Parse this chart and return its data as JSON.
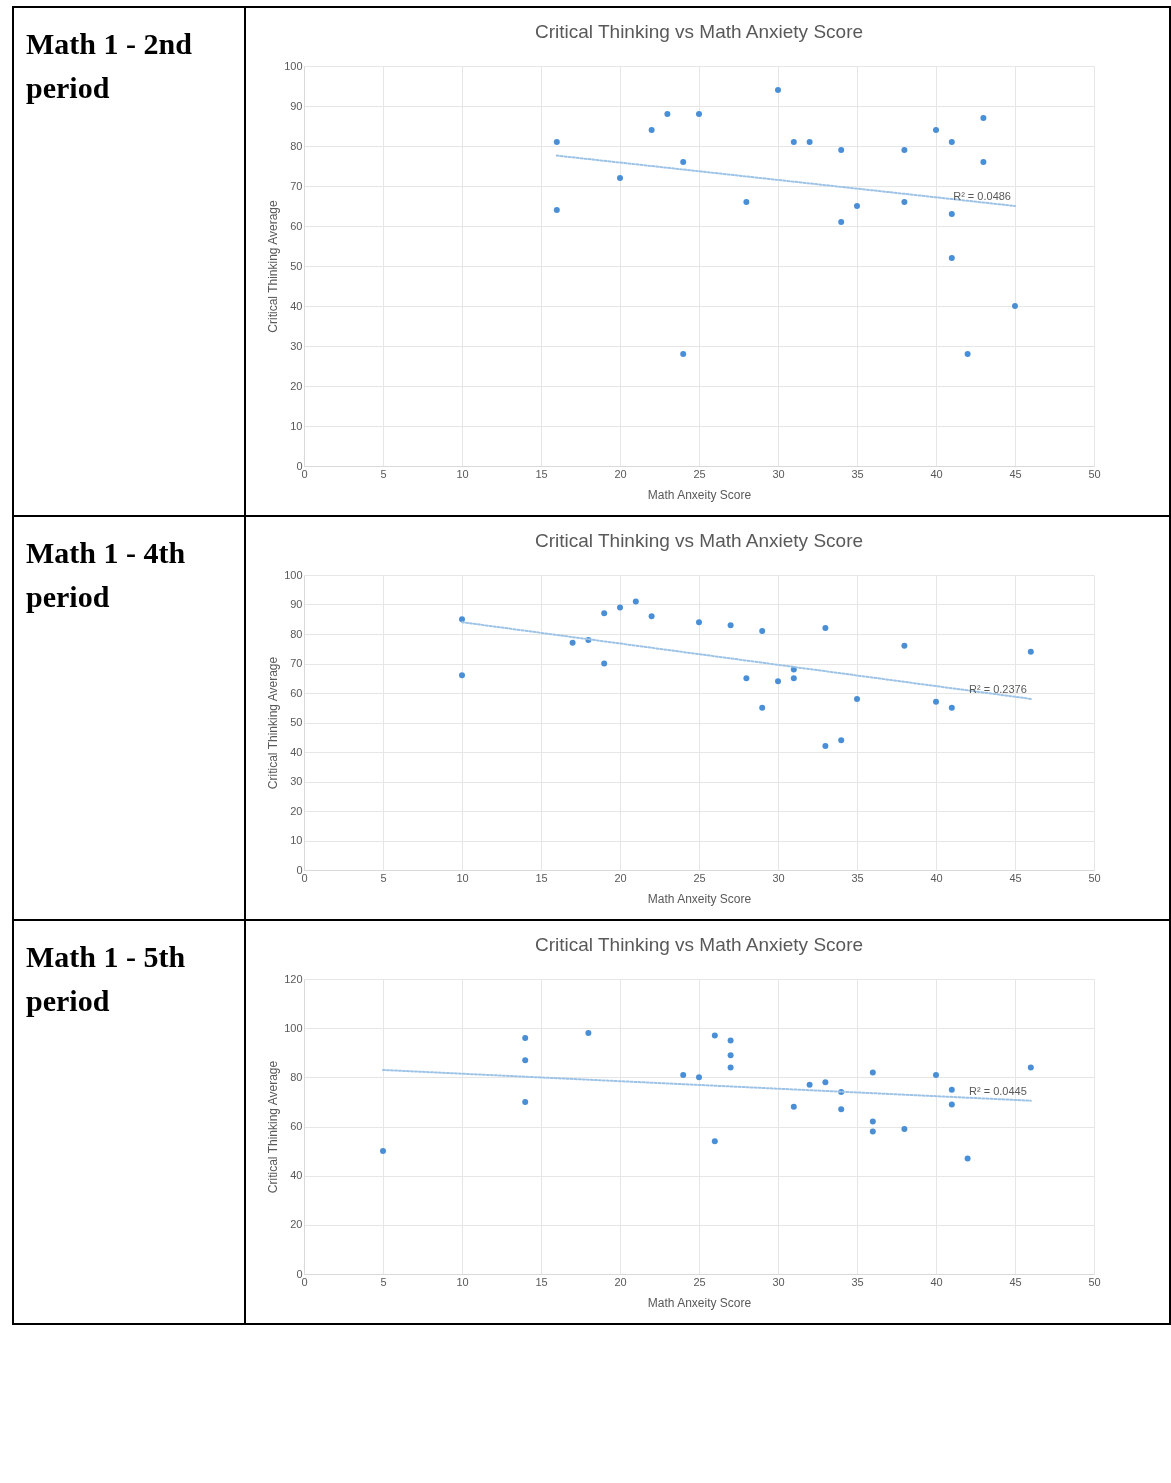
{
  "chart_data": [
    {
      "type": "scatter",
      "subtitle": "Math 1 - 2nd period",
      "title": "Critical Thinking vs Math Anxiety Score",
      "xlabel": "Math Anxeity Score",
      "ylabel": "Critical Thinking Average",
      "xlim": [
        0,
        50
      ],
      "xticks": [
        0,
        5,
        10,
        15,
        20,
        25,
        30,
        35,
        40,
        45,
        50
      ],
      "ylim": [
        0,
        100
      ],
      "yticks": [
        0,
        10,
        20,
        30,
        40,
        50,
        60,
        70,
        80,
        90,
        100
      ],
      "grid": true,
      "annotations": [
        "R² = 0.0486"
      ],
      "series": [
        {
          "color": "#4a8fd6",
          "marker": "circle",
          "x": [
            16,
            16,
            20,
            22,
            23,
            24,
            24,
            25,
            28,
            30,
            31,
            32,
            34,
            34,
            35,
            38,
            38,
            40,
            41,
            41,
            41,
            42,
            43,
            43,
            45
          ],
          "values": [
            81,
            64,
            72,
            84,
            88,
            76,
            28,
            88,
            66,
            94,
            81,
            81,
            79,
            61,
            65,
            79,
            66,
            84,
            81,
            63,
            52,
            28,
            87,
            76,
            40
          ]
        },
        {
          "type": "line",
          "line_style": "dotted",
          "color": "#9dc3e6",
          "x": [
            16,
            45
          ],
          "values": [
            77.6,
            65
          ]
        }
      ]
    },
    {
      "type": "scatter",
      "subtitle": "Math 1 - 4th period",
      "title": "Critical Thinking vs Math Anxiety Score",
      "xlabel": "Math Anxeity Score",
      "ylabel": "Critical Thinking Average",
      "xlim": [
        0,
        50
      ],
      "xticks": [
        0,
        5,
        10,
        15,
        20,
        25,
        30,
        35,
        40,
        45,
        50
      ],
      "ylim": [
        0,
        100
      ],
      "yticks": [
        0,
        10,
        20,
        30,
        40,
        50,
        60,
        70,
        80,
        90,
        100
      ],
      "grid": true,
      "annotations": [
        "R² = 0.2376"
      ],
      "series": [
        {
          "color": "#4a8fd6",
          "marker": "circle",
          "x": [
            10,
            10,
            17,
            18,
            19,
            19,
            20,
            21,
            22,
            25,
            27,
            28,
            29,
            29,
            30,
            31,
            31,
            33,
            33,
            34,
            35,
            38,
            40,
            41,
            46
          ],
          "values": [
            85,
            66,
            77,
            78,
            87,
            70,
            89,
            91,
            86,
            84,
            83,
            65,
            81,
            55,
            64,
            68,
            65,
            82,
            42,
            44,
            58,
            76,
            57,
            55,
            74
          ]
        },
        {
          "type": "line",
          "line_style": "dotted",
          "color": "#9dc3e6",
          "x": [
            10,
            46
          ],
          "values": [
            84,
            58
          ]
        }
      ]
    },
    {
      "type": "scatter",
      "subtitle": "Math 1 - 5th period",
      "title": "Critical Thinking vs Math Anxiety Score",
      "xlabel": "Math Anxeity Score",
      "ylabel": "Critical Thinking Average",
      "xlim": [
        0,
        50
      ],
      "xticks": [
        0,
        5,
        10,
        15,
        20,
        25,
        30,
        35,
        40,
        45,
        50
      ],
      "ylim": [
        0,
        120
      ],
      "yticks": [
        0,
        20,
        40,
        60,
        80,
        100,
        120
      ],
      "grid": true,
      "annotations": [
        "R² = 0.0445"
      ],
      "series": [
        {
          "color": "#4a8fd6",
          "marker": "circle",
          "x": [
            5,
            14,
            14,
            14,
            18,
            24,
            25,
            26,
            26,
            27,
            27,
            27,
            31,
            32,
            33,
            34,
            34,
            36,
            36,
            36,
            38,
            40,
            41,
            41,
            42,
            46
          ],
          "values": [
            50,
            96,
            87,
            70,
            98,
            81,
            80,
            97,
            54,
            95,
            89,
            84,
            68,
            77,
            78,
            74,
            67,
            82,
            62,
            58,
            59,
            81,
            75,
            69,
            47,
            84
          ]
        },
        {
          "type": "line",
          "line_style": "dotted",
          "color": "#9dc3e6",
          "x": [
            5,
            46
          ],
          "values": [
            83,
            70.5
          ]
        }
      ]
    }
  ]
}
